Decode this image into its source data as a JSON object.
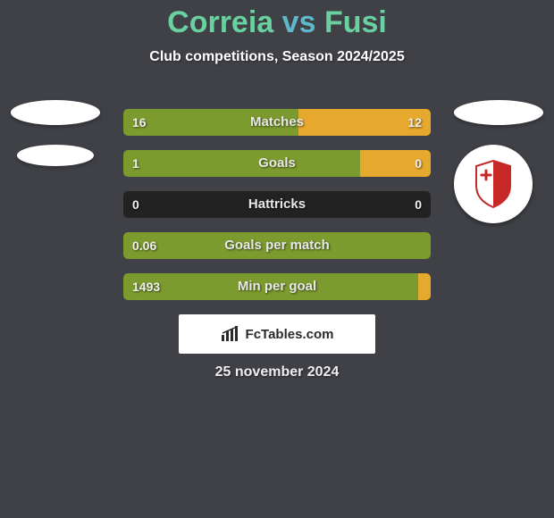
{
  "header": {
    "player1": "Correia",
    "vs": "vs",
    "player2": "Fusi",
    "subtitle": "Club competitions, Season 2024/2025"
  },
  "colors": {
    "bg": "#3f4147",
    "left_bar": "#7c9b2e",
    "right_bar": "#e7a82e",
    "title_p": "#68d19f",
    "title_vs": "#5fb8c9"
  },
  "stats": [
    {
      "label": "Matches",
      "left_val": "16",
      "right_val": "12",
      "left_ratio": 0.57,
      "right_ratio": 0.43,
      "left_display": "16",
      "right_display": "12"
    },
    {
      "label": "Goals",
      "left_val": "1",
      "right_val": "0",
      "left_ratio": 0.77,
      "right_ratio": 0.23,
      "left_display": "1",
      "right_display": "0"
    },
    {
      "label": "Hattricks",
      "left_val": "0",
      "right_val": "0",
      "left_ratio": 0.0,
      "right_ratio": 0.0,
      "left_display": "0",
      "right_display": "0"
    },
    {
      "label": "Goals per match",
      "left_val": "0.06",
      "right_val": "",
      "left_ratio": 1.0,
      "right_ratio": 0.0,
      "left_display": "0.06",
      "right_display": ""
    },
    {
      "label": "Min per goal",
      "left_val": "1493",
      "right_val": "",
      "left_ratio": 0.96,
      "right_ratio": 0.04,
      "left_display": "1493",
      "right_display": ""
    }
  ],
  "credit": {
    "text": "FcTables.com"
  },
  "date": "25 november 2024"
}
